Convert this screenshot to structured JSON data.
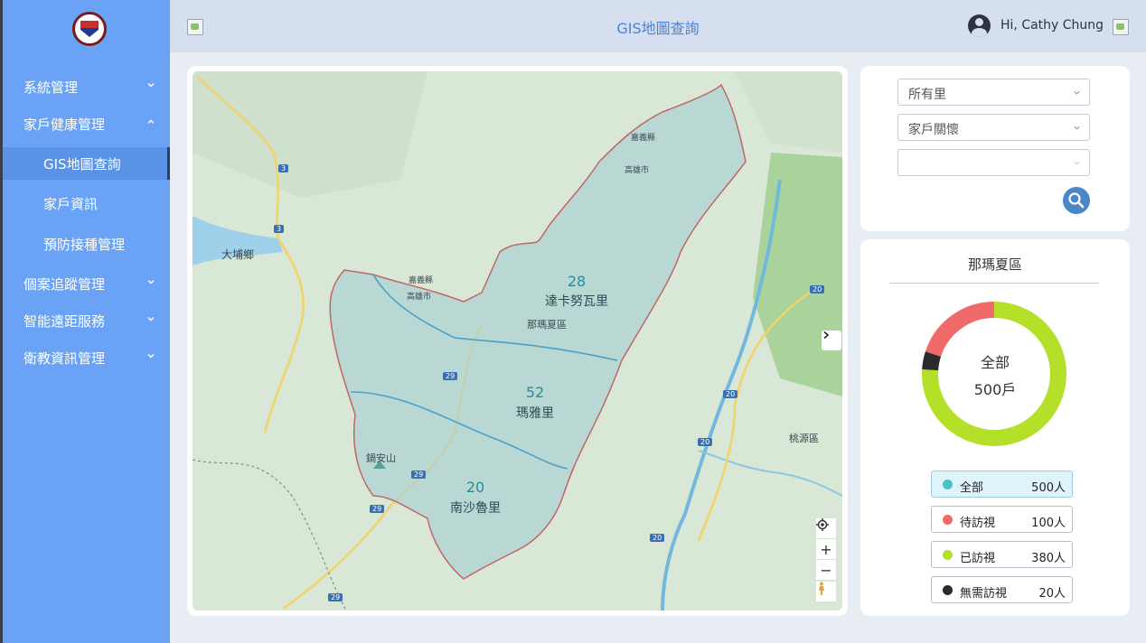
{
  "header": {
    "title": "GIS地圖查詢",
    "greeting": "Hi, Cathy Chung"
  },
  "sidebar": {
    "items": [
      {
        "label": "系統管理",
        "expanded": false
      },
      {
        "label": "家戶健康管理",
        "expanded": true
      },
      {
        "label": "GIS地圖查詢",
        "sub": true,
        "active": true
      },
      {
        "label": "家戶資訊",
        "sub": true
      },
      {
        "label": "預防接種管理",
        "sub": true
      },
      {
        "label": "個案追蹤管理",
        "expanded": false
      },
      {
        "label": "智能遠距服務",
        "expanded": false
      },
      {
        "label": "衛教資訊管理",
        "expanded": false
      }
    ]
  },
  "map": {
    "villages": [
      {
        "name": "達卡努瓦里",
        "count": "28"
      },
      {
        "name": "瑪雅里",
        "count": "52"
      },
      {
        "name": "南沙魯里",
        "count": "20"
      }
    ],
    "places": {
      "dapu": "大埔鄉",
      "district": "那瑪夏區",
      "kaohsiung_top": "高雄市",
      "chiayi": "嘉義縣",
      "kaohsiung_mid": "高雄市",
      "chiayi_mid": "嘉義縣",
      "taoyuan": "桃源區",
      "shan": "鍋安山"
    },
    "road_numbers": {
      "r3a": "3",
      "r3b": "3",
      "r20a": "20",
      "r20b": "20",
      "r20c": "20",
      "r20d": "20",
      "r29a": "29",
      "r29b": "29",
      "r29c": "29",
      "r29d": "29"
    },
    "controls": {
      "plus": "+",
      "minus": "−"
    }
  },
  "filters": {
    "village": "所有里",
    "category": "家戶關懷",
    "third": ""
  },
  "stats": {
    "district": "那瑪夏區",
    "center_label": "全部",
    "center_value": "500戶",
    "legend": [
      {
        "name": "全部",
        "value": "500人",
        "color": "#45c4c8"
      },
      {
        "name": "待訪視",
        "value": "100人",
        "color": "#f06a6a"
      },
      {
        "name": "已訪視",
        "value": "380人",
        "color": "#b4e02a"
      },
      {
        "name": "無需訪視",
        "value": "20人",
        "color": "#2a2a2a"
      }
    ],
    "donut": [
      {
        "name": "待訪視",
        "value": 100,
        "color": "#f06a6a"
      },
      {
        "name": "已訪視",
        "value": 380,
        "color": "#b4e02a"
      },
      {
        "name": "無需訪視",
        "value": 20,
        "color": "#2a2a2a"
      }
    ]
  }
}
